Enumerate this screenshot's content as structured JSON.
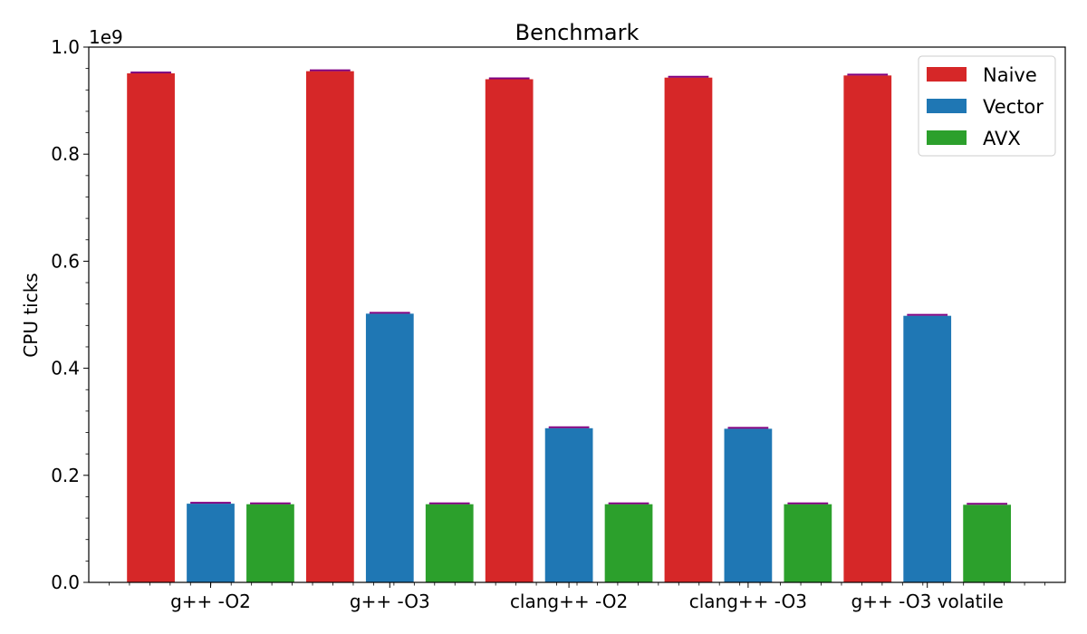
{
  "chart_data": {
    "type": "bar",
    "title": "Benchmark",
    "xlabel": "",
    "ylabel": "CPU ticks",
    "y_scale_label": "1e9",
    "ylim": [
      0,
      1.0
    ],
    "yticks": [
      "0.0",
      "0.2",
      "0.4",
      "0.6",
      "0.8",
      "1.0"
    ],
    "categories": [
      "g++ -O2",
      "g++ -O3",
      "clang++ -O2",
      "clang++ -O3",
      "g++ -O3 volatile"
    ],
    "legend_position": "top-right",
    "grid": false,
    "error_bar_color": "#800080",
    "series": [
      {
        "name": "Naive",
        "color": "#d62728",
        "values": [
          0.951,
          0.955,
          0.94,
          0.943,
          0.947
        ]
      },
      {
        "name": "Vector",
        "color": "#1f77b4",
        "values": [
          0.147,
          0.502,
          0.288,
          0.287,
          0.498
        ]
      },
      {
        "name": "AVX",
        "color": "#2ca02c",
        "values": [
          0.146,
          0.146,
          0.146,
          0.146,
          0.145
        ]
      }
    ]
  }
}
